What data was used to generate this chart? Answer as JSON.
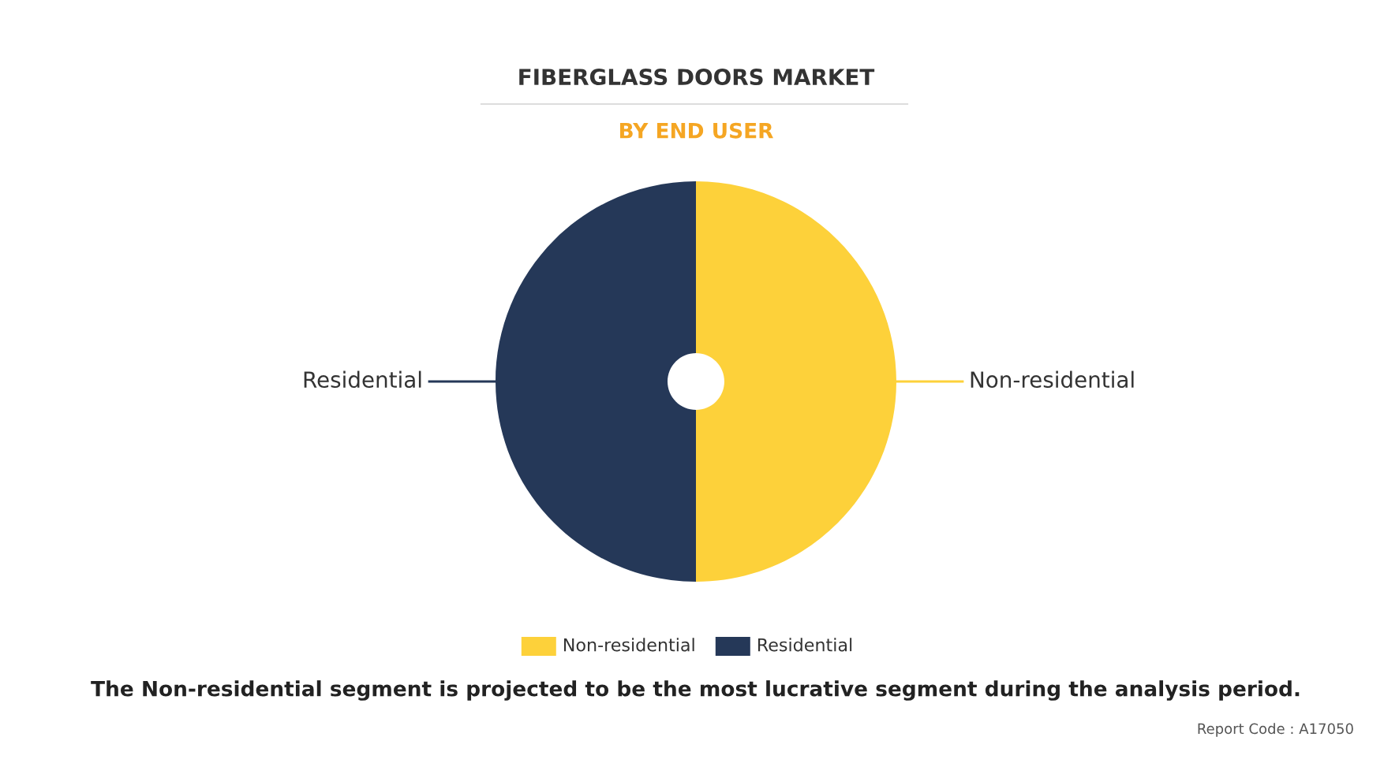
{
  "chart_data": {
    "type": "donut",
    "title": "FIBERGLASS DOORS MARKET",
    "subtitle": "BY END USER",
    "categories": [
      "Non-residential",
      "Residential"
    ],
    "values": [
      50,
      50
    ],
    "colors": [
      "#fdd13a",
      "#253858"
    ],
    "legend": "bottom",
    "annotations": [
      "The Non-residential segment is projected to be the most lucrative segment during the analysis period.",
      "Report Code : A17050"
    ]
  }
}
